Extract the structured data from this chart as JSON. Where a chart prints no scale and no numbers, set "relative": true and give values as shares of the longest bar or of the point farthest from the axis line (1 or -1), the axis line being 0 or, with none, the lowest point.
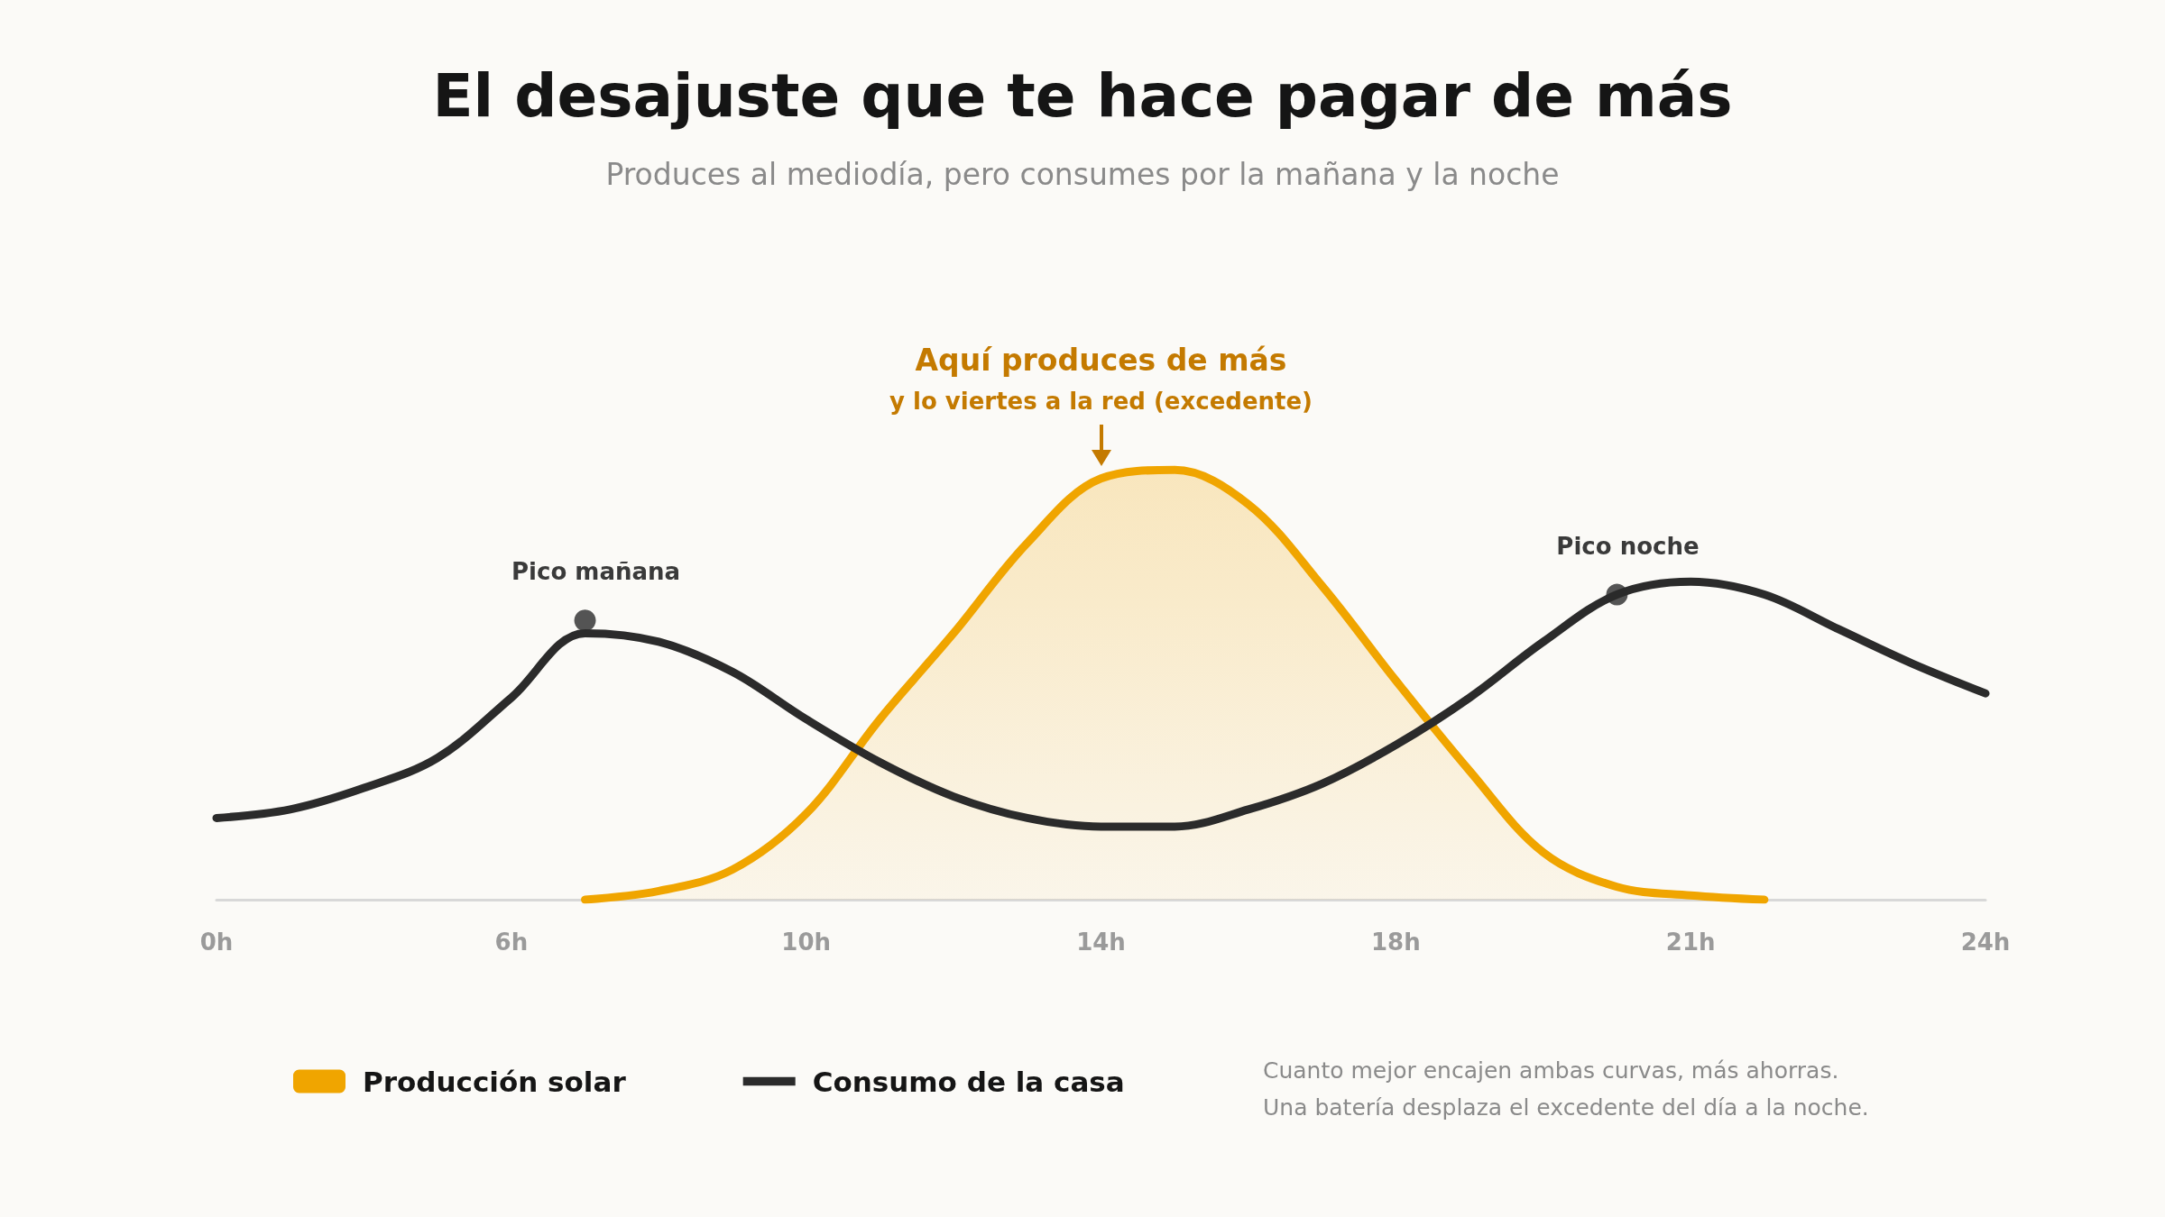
{
  "chart_data": {
    "type": "line",
    "title": "El desajuste que te hace pagar de más",
    "subtitle": "Produces al mediodía, pero consumes por la mañana y la noche",
    "relative": true,
    "categories": [
      "0h",
      null,
      null,
      null,
      "6h",
      null,
      null,
      null,
      "10h",
      null,
      null,
      null,
      "14h",
      null,
      null,
      null,
      "18h",
      null,
      null,
      null,
      "21h",
      null,
      null,
      null,
      "24h"
    ],
    "series": [
      {
        "name": "Producción solar",
        "type": "area",
        "color": "#f0a500",
        "values": [
          null,
          null,
          null,
          null,
          null,
          0,
          0.02,
          0.07,
          0.2,
          0.42,
          0.62,
          0.83,
          0.98,
          1.0,
          0.92,
          0.73,
          0.51,
          0.3,
          0.11,
          0.03,
          0.01,
          0,
          null,
          null,
          null
        ]
      },
      {
        "name": "Consumo de la casa",
        "color": "#2b2b2b",
        "values": [
          0.19,
          0.21,
          0.26,
          0.33,
          0.47,
          0.62,
          0.6,
          0.53,
          0.42,
          0.32,
          0.24,
          0.19,
          0.17,
          0.17,
          0.21,
          0.27,
          0.36,
          0.47,
          0.6,
          0.71,
          0.74,
          0.71,
          0.63,
          0.55,
          0.48
        ]
      },
      {
        "type": "scatter",
        "color": "#2b2b2b",
        "values": [
          null,
          null,
          null,
          null,
          null,
          0.65,
          null,
          null,
          null,
          null,
          null,
          null,
          null,
          null,
          null,
          null,
          null,
          null,
          null,
          0.71,
          null,
          null,
          null,
          null,
          null
        ]
      }
    ],
    "annotations": [
      "Aquí produces de más",
      "y lo viertes a la red (excedente)",
      "Pico mañana",
      "Pico noche",
      "Cuanto mejor encajen ambas curvas, más ahorras.",
      "Una batería desplaza el excedente del día a la noche."
    ],
    "legend": "bottom",
    "line_style": "solid"
  }
}
